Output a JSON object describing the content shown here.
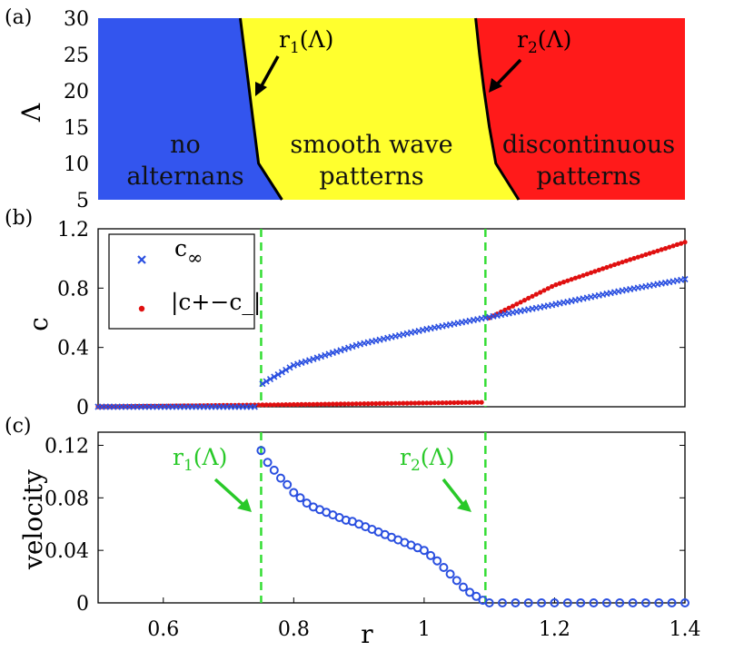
{
  "chart_data": [
    {
      "panel": "(a)",
      "type": "area",
      "ylabel": "Λ",
      "ylim": [
        5,
        30
      ],
      "yticks": [
        "30",
        "25",
        "20",
        "15",
        "10",
        "5"
      ],
      "xlim": [
        0.5,
        1.4
      ],
      "regions": [
        {
          "label_lines": [
            "no",
            "alternans"
          ],
          "color": "#3355ee"
        },
        {
          "label_lines": [
            "smooth wave",
            "patterns"
          ],
          "color": "#ffff2e"
        },
        {
          "label_lines": [
            "discontinuous",
            "patterns"
          ],
          "color": "#ff1a1a"
        }
      ],
      "boundaries": [
        {
          "name": "r1(Λ)",
          "base": "r",
          "sub": "1",
          "arg": "(Λ)",
          "points": {
            "lambda": [
              30,
              25,
              20,
              15,
              10,
              5
            ],
            "r": [
              0.718,
              0.725,
              0.732,
              0.739,
              0.746,
              0.782
            ]
          }
        },
        {
          "name": "r2(Λ)",
          "base": "r",
          "sub": "2",
          "arg": "(Λ)",
          "points": {
            "lambda": [
              30,
              25,
              20,
              15,
              10,
              5
            ],
            "r": [
              1.079,
              1.085,
              1.092,
              1.1,
              1.11,
              1.145
            ]
          }
        }
      ]
    },
    {
      "panel": "(b)",
      "type": "scatter",
      "ylabel": "c",
      "xlim": [
        0.5,
        1.4
      ],
      "ylim": [
        0,
        1.2
      ],
      "yticks": [
        "0",
        "0.4",
        "0.8",
        "1.2"
      ],
      "vlines": [
        0.75,
        1.094
      ],
      "legend": {
        "placement": "top-left",
        "entries": [
          {
            "marker": "x",
            "color": "#2a4fe0",
            "base": "c",
            "sub": "∞"
          },
          {
            "marker": "dot",
            "color": "#e01010",
            "text": "|c+−c_|"
          }
        ]
      },
      "series": [
        {
          "name": "c∞",
          "color": "#2a4fe0",
          "marker": "x",
          "curve": {
            "x": [
              0.5,
              0.745,
              0.75,
              0.8,
              0.9,
              1.0,
              1.094,
              1.2,
              1.3,
              1.4
            ],
            "y": [
              0,
              0,
              0.15,
              0.28,
              0.42,
              0.52,
              0.6,
              0.69,
              0.78,
              0.86
            ]
          }
        },
        {
          "name": "|c+−c_|",
          "color": "#e01010",
          "marker": "dot",
          "curve": {
            "x": [
              0.5,
              1.09,
              1.094,
              1.1,
              1.2,
              1.3,
              1.4
            ],
            "y": [
              0,
              0.03,
              0.55,
              0.6,
              0.82,
              0.97,
              1.11
            ]
          }
        }
      ]
    },
    {
      "panel": "(c)",
      "type": "scatter",
      "xlabel": "r",
      "ylabel": "velocity",
      "xlim": [
        0.5,
        1.4
      ],
      "ylim": [
        0,
        0.13
      ],
      "yticks": [
        "0",
        "0.04",
        "0.08",
        "0.12"
      ],
      "xticks": [
        "0.6",
        "0.8",
        "1",
        "1.2",
        "1.4"
      ],
      "vlines": [
        0.75,
        1.094
      ],
      "annotations": [
        {
          "base": "r",
          "sub": "1",
          "arg": "(Λ)",
          "color": "#29c929"
        },
        {
          "base": "r",
          "sub": "2",
          "arg": "(Λ)",
          "color": "#29c929"
        }
      ],
      "series": [
        {
          "name": "velocity",
          "color": "#2a4fe0",
          "marker": "circle",
          "points": {
            "x": [
              0.75,
              0.76,
              0.77,
              0.78,
              0.79,
              0.8,
              0.81,
              0.82,
              0.83,
              0.84,
              0.85,
              0.86,
              0.87,
              0.88,
              0.89,
              0.9,
              0.91,
              0.92,
              0.93,
              0.94,
              0.95,
              0.96,
              0.97,
              0.98,
              0.99,
              1.0,
              1.01,
              1.02,
              1.03,
              1.04,
              1.05,
              1.06,
              1.07,
              1.08,
              1.09,
              1.1,
              1.12,
              1.14,
              1.16,
              1.18,
              1.2,
              1.22,
              1.24,
              1.26,
              1.28,
              1.3,
              1.32,
              1.34,
              1.36,
              1.38,
              1.4
            ],
            "y": [
              0.116,
              0.107,
              0.101,
              0.095,
              0.09,
              0.084,
              0.08,
              0.076,
              0.073,
              0.071,
              0.069,
              0.067,
              0.065,
              0.063,
              0.062,
              0.06,
              0.058,
              0.056,
              0.054,
              0.052,
              0.05,
              0.048,
              0.046,
              0.044,
              0.042,
              0.04,
              0.036,
              0.032,
              0.027,
              0.022,
              0.017,
              0.012,
              0.008,
              0.005,
              0.002,
              0,
              0,
              0,
              0,
              0,
              0,
              0,
              0,
              0,
              0,
              0,
              0,
              0,
              0,
              0,
              0
            ]
          }
        }
      ]
    }
  ]
}
